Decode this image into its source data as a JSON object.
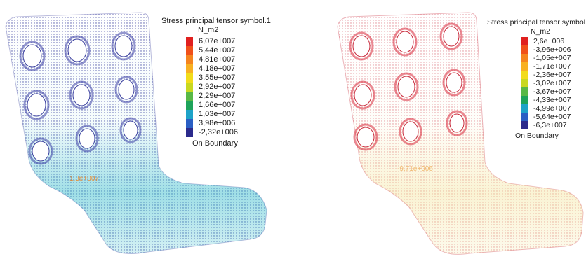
{
  "left_plot": {
    "legend": {
      "title": "Stress principal tensor symbol.1",
      "unit": "N_m2",
      "scale": [
        {
          "label": "6,07e+007",
          "color": "#e0201f"
        },
        {
          "label": "5,44e+007",
          "color": "#f0501a"
        },
        {
          "label": "4,81e+007",
          "color": "#f5841e"
        },
        {
          "label": "4,18e+007",
          "color": "#f8b021"
        },
        {
          "label": "3,55e+007",
          "color": "#f2dc1a"
        },
        {
          "label": "2,92e+007",
          "color": "#c8d820"
        },
        {
          "label": "2,29e+007",
          "color": "#58b846"
        },
        {
          "label": "1,66e+007",
          "color": "#1ea35a"
        },
        {
          "label": "1,03e+007",
          "color": "#1ea3c8"
        },
        {
          "label": "3,98e+006",
          "color": "#2a5fc4"
        },
        {
          "label": "-2,32e+006",
          "color": "#2b2a8c"
        }
      ],
      "footer": "On Boundary"
    },
    "probe_label": "1,3e+007",
    "probe_color": "#e8903a",
    "mesh_color": "#3b3f9e",
    "gradient_color": "#2bb8c8"
  },
  "right_plot": {
    "legend": {
      "title": "Stress principal tensor symbol.1",
      "unit": "N_m2",
      "scale": [
        {
          "label": "2,6e+006",
          "color": "#e0201f"
        },
        {
          "label": "-3,96e+006",
          "color": "#f0501a"
        },
        {
          "label": "-1,05e+007",
          "color": "#f5841e"
        },
        {
          "label": "-1,71e+007",
          "color": "#f8b021"
        },
        {
          "label": "-2,36e+007",
          "color": "#f2dc1a"
        },
        {
          "label": "-3,02e+007",
          "color": "#c8d820"
        },
        {
          "label": "-3,67e+007",
          "color": "#58b846"
        },
        {
          "label": "-4,33e+007",
          "color": "#1ea35a"
        },
        {
          "label": "-4,99e+007",
          "color": "#1ea3c8"
        },
        {
          "label": "-5,64e+007",
          "color": "#2a5fc4"
        },
        {
          "label": "-6,3e+007",
          "color": "#2b2a8c"
        }
      ],
      "footer": "On Boundary"
    },
    "probe_label": "-9,71e+006",
    "probe_color": "#f0b870",
    "mesh_color": "#c8283a",
    "gradient_color": "#f4e6a0"
  }
}
